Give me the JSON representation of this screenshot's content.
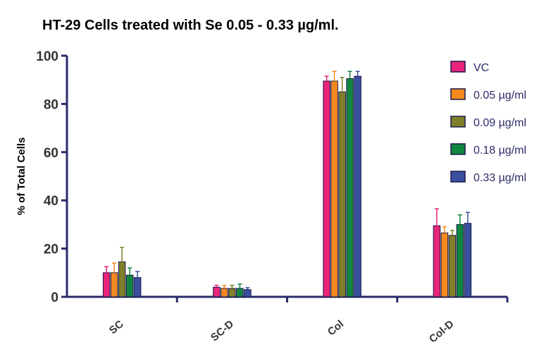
{
  "chart_data": {
    "type": "bar",
    "title": "HT-29 Cells treated with Se 0.05 - 0.33 µg/ml.",
    "ylabel": "% of Total Cells",
    "xlabel": "",
    "ylim": [
      0,
      100
    ],
    "yticks": [
      0,
      20,
      40,
      60,
      80,
      100
    ],
    "categories": [
      "SC",
      "SC-D",
      "Col",
      "Col-D"
    ],
    "legend_position": "right",
    "error_bars": true,
    "series": [
      {
        "name": "VC",
        "color": "#e8257a",
        "values": [
          10,
          4,
          89.5,
          29.5
        ],
        "errors": [
          2.5,
          0.8,
          2,
          7
        ]
      },
      {
        "name": "0.05 µg/ml",
        "color": "#f5891f",
        "values": [
          10,
          3.5,
          89.5,
          26.5
        ],
        "errors": [
          4,
          1.2,
          4,
          2.5
        ]
      },
      {
        "name": "0.09 µg/ml",
        "color": "#7f7f2a",
        "values": [
          14.5,
          3.5,
          85,
          25.5
        ],
        "errors": [
          6,
          1.3,
          6,
          2
        ]
      },
      {
        "name": "0.18 µg/ml",
        "color": "#108540",
        "values": [
          9,
          3.5,
          90.5,
          30
        ],
        "errors": [
          3,
          1.8,
          3,
          4
        ]
      },
      {
        "name": "0.33 µg/ml",
        "color": "#3a4f9e",
        "values": [
          8,
          3,
          91.5,
          30.5
        ],
        "errors": [
          2.5,
          0.8,
          2,
          4.5
        ]
      }
    ]
  }
}
